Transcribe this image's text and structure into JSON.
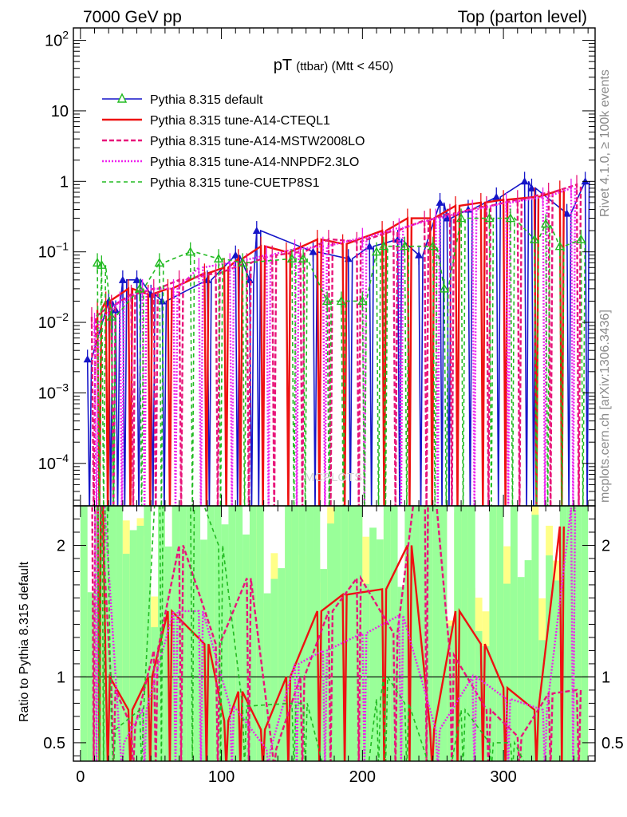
{
  "header": {
    "left": "7000 GeV pp",
    "right": "Top (parton level)"
  },
  "side_notes": {
    "rivet": "Rivet 4.1.0, ≥ 100k events",
    "mcplots": "mcplots.cern.ch [arXiv:1306.3436]"
  },
  "colors": {
    "default": "#1515c8",
    "cteql1": "#ee1111",
    "mstw": "#e8157a",
    "nnpdf": "#ee22ee",
    "cuetp": "#22bb22",
    "band_yellow": "#ffff88",
    "band_green": "#99ff99"
  },
  "chart_data": {
    "type": "line",
    "title_main": "pT",
    "title_sub": "(ttbar)",
    "title_cut": "(Mtt < 450)",
    "xlabel": "",
    "ylabel_upper": "",
    "ylabel_ratio": "Ratio to Pythia 8.315 default",
    "x_range": [
      -5,
      365
    ],
    "y_range_upper": [
      2.5e-05,
      150
    ],
    "y_scale_upper": "log",
    "y_range_ratio": [
      0.36,
      2.3
    ],
    "x_ticks": [
      0,
      100,
      200,
      300
    ],
    "y_ticks_upper": [
      {
        "value": 100,
        "base": "10",
        "exp": "2"
      },
      {
        "value": 10,
        "base": "10",
        "exp": ""
      },
      {
        "value": 1,
        "base": "1",
        "exp": ""
      },
      {
        "value": 0.1,
        "base": "10",
        "exp": "−1"
      },
      {
        "value": 0.01,
        "base": "10",
        "exp": "−2"
      },
      {
        "value": 0.001,
        "base": "10",
        "exp": "−3"
      },
      {
        "value": 0.0001,
        "base": "10",
        "exp": "−4"
      }
    ],
    "y_ticks_ratio": [
      {
        "value": 2,
        "label": "2"
      },
      {
        "value": 1,
        "label": "1"
      },
      {
        "value": 0.5,
        "label": "0.5"
      }
    ],
    "watermark": "MCPLOTS",
    "legend_position": "top-left",
    "series": [
      {
        "name": "Pythia 8.315 default",
        "key": "default",
        "x": [
          5,
          20,
          25,
          30,
          40,
          50,
          58,
          90,
          110,
          120,
          125,
          165,
          190,
          205,
          225,
          240,
          255,
          260,
          275,
          295,
          315,
          320,
          345,
          358
        ],
        "values": [
          0.003,
          0.02,
          0.015,
          0.04,
          0.04,
          0.025,
          0.02,
          0.04,
          0.09,
          0.04,
          0.2,
          0.1,
          0.08,
          0.12,
          0.15,
          0.09,
          0.5,
          0.3,
          0.4,
          0.6,
          1.0,
          0.8,
          0.35,
          1.0
        ]
      },
      {
        "name": "Pythia 8.315 tune-A14-CTEQL1",
        "key": "cteql1",
        "x": [
          12,
          18,
          34,
          48,
          62,
          88,
          102,
          112,
          128,
          146,
          168,
          186,
          214,
          232,
          248,
          266,
          284,
          300,
          322,
          340
        ],
        "values": [
          0.015,
          0.02,
          0.03,
          0.025,
          0.03,
          0.05,
          0.06,
          0.08,
          0.12,
          0.1,
          0.15,
          0.13,
          0.2,
          0.3,
          0.3,
          0.45,
          0.5,
          0.55,
          0.6,
          0.75
        ]
      },
      {
        "name": "Pythia 8.315 tune-A14-MSTW2008LO",
        "key": "mstw",
        "x": [
          8,
          22,
          36,
          52,
          70,
          96,
          118,
          136,
          156,
          176,
          196,
          222,
          244,
          262,
          288,
          310,
          332,
          352
        ],
        "values": [
          0.012,
          0.018,
          0.025,
          0.03,
          0.04,
          0.05,
          0.07,
          0.09,
          0.1,
          0.15,
          0.14,
          0.2,
          0.28,
          0.35,
          0.45,
          0.55,
          0.7,
          0.9
        ]
      },
      {
        "name": "Pythia 8.315 tune-A14-NNPDF2.3LO",
        "key": "nnpdf",
        "x": [
          10,
          28,
          44,
          66,
          84,
          106,
          132,
          152,
          172,
          200,
          226,
          252,
          278,
          302,
          328,
          348
        ],
        "values": [
          0.01,
          0.02,
          0.03,
          0.03,
          0.06,
          0.07,
          0.09,
          0.11,
          0.12,
          0.16,
          0.22,
          0.3,
          0.4,
          0.5,
          0.6,
          0.8
        ]
      },
      {
        "name": "Pythia 8.315 tune-CUETP8S1",
        "key": "cuetp",
        "x": [
          12,
          15,
          22,
          42,
          56,
          78,
          98,
          115,
          150,
          158,
          175,
          185,
          200,
          210,
          215,
          230,
          250,
          258,
          270,
          290,
          305,
          322,
          330,
          340,
          355
        ],
        "values": [
          0.07,
          0.065,
          0.012,
          0.03,
          0.07,
          0.1,
          0.08,
          0.07,
          0.08,
          0.08,
          0.02,
          0.02,
          0.02,
          0.1,
          0.12,
          0.12,
          0.12,
          0.03,
          0.3,
          0.3,
          0.3,
          0.15,
          0.25,
          0.12,
          0.15
        ]
      }
    ]
  }
}
